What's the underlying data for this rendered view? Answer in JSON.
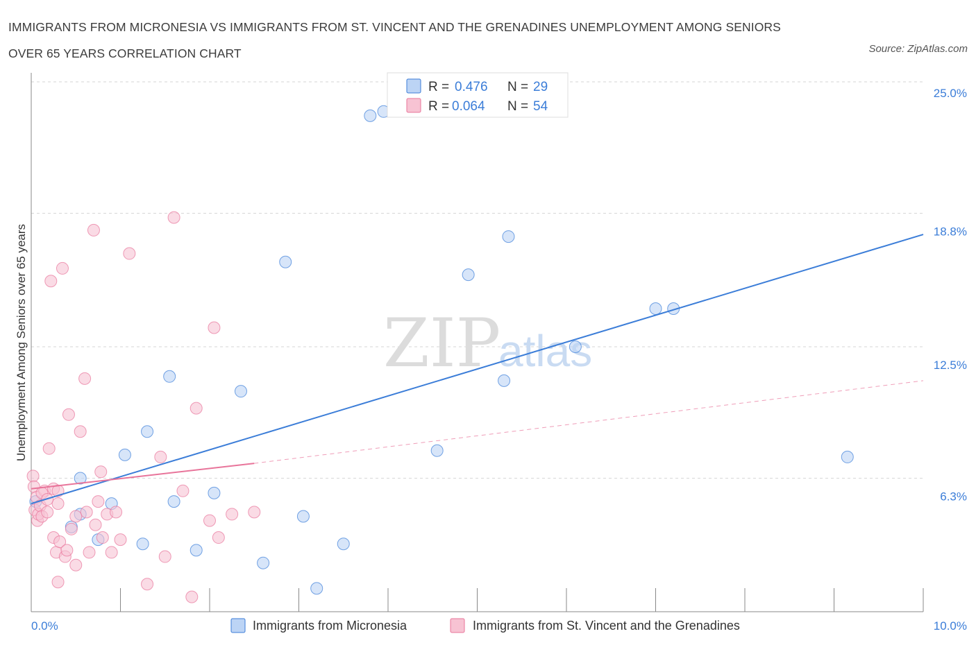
{
  "title_line1": "IMMIGRANTS FROM MICRONESIA VS IMMIGRANTS FROM ST. VINCENT AND THE GRENADINES UNEMPLOYMENT AMONG SENIORS",
  "title_line2": "OVER 65 YEARS CORRELATION CHART",
  "source": "Source: ZipAtlas.com",
  "watermark": {
    "zip": "ZIP",
    "atlas": "atlas"
  },
  "colors": {
    "blue": "#3b7dd8",
    "blue_fill": "#bcd4f5",
    "pink": "#e8749a",
    "pink_fill": "#f7c3d3",
    "grid": "#d6d6d6"
  },
  "legend": {
    "rows": [
      {
        "r_label": "R =",
        "r_value": "0.476",
        "n_label": "N =",
        "n_value": "29"
      },
      {
        "r_label": "R =",
        "r_value": "0.064",
        "n_label": "N =",
        "n_value": "54"
      }
    ]
  },
  "chart_data": {
    "type": "scatter",
    "title": "IMMIGRANTS FROM MICRONESIA VS IMMIGRANTS FROM ST. VINCENT AND THE GRENADINES UNEMPLOYMENT AMONG SENIORS OVER 65 YEARS CORRELATION CHART",
    "xlabel": "",
    "ylabel": "Unemployment Among Seniors over 65 years",
    "xlim": [
      0,
      10
    ],
    "ylim": [
      0,
      25
    ],
    "x_tick_labels": [
      "0.0%",
      "10.0%"
    ],
    "y_ticks": [
      6.3,
      12.5,
      18.8,
      25.0
    ],
    "y_tick_labels": [
      "6.3%",
      "12.5%",
      "18.8%",
      "25.0%"
    ],
    "grid": true,
    "legend_position": "bottom-center",
    "series": [
      {
        "name": "Immigrants from Micronesia",
        "color": "#3b7dd8",
        "trend": {
          "x": [
            0.0,
            10.0
          ],
          "y": [
            5.1,
            17.8
          ],
          "style": "solid"
        },
        "points": [
          [
            0.05,
            5.2
          ],
          [
            0.45,
            4.0
          ],
          [
            0.55,
            4.6
          ],
          [
            0.55,
            6.3
          ],
          [
            0.75,
            3.4
          ],
          [
            0.9,
            5.1
          ],
          [
            1.05,
            7.4
          ],
          [
            1.25,
            3.2
          ],
          [
            1.3,
            8.5
          ],
          [
            1.55,
            11.1
          ],
          [
            1.6,
            5.2
          ],
          [
            1.85,
            2.9
          ],
          [
            2.05,
            5.6
          ],
          [
            2.35,
            10.4
          ],
          [
            2.6,
            2.3
          ],
          [
            2.85,
            16.5
          ],
          [
            3.05,
            4.5
          ],
          [
            3.2,
            1.1
          ],
          [
            3.5,
            3.2
          ],
          [
            3.8,
            23.4
          ],
          [
            3.95,
            23.6
          ],
          [
            4.55,
            7.6
          ],
          [
            4.9,
            15.9
          ],
          [
            5.3,
            10.9
          ],
          [
            5.35,
            17.7
          ],
          [
            6.1,
            12.5
          ],
          [
            7.0,
            14.3
          ],
          [
            7.2,
            14.3
          ],
          [
            9.15,
            7.3
          ]
        ]
      },
      {
        "name": "Immigrants from St. Vincent and the Grenadines",
        "color": "#e8749a",
        "trend": {
          "x": [
            0.0,
            2.5
          ],
          "y": [
            5.8,
            7.0
          ],
          "style": "solid",
          "extended": {
            "x": [
              2.5,
              10.0
            ],
            "y": [
              7.0,
              10.9
            ],
            "style": "dashed"
          }
        },
        "points": [
          [
            0.02,
            6.4
          ],
          [
            0.03,
            5.9
          ],
          [
            0.04,
            4.8
          ],
          [
            0.06,
            5.4
          ],
          [
            0.07,
            4.3
          ],
          [
            0.08,
            4.6
          ],
          [
            0.1,
            5.0
          ],
          [
            0.12,
            4.5
          ],
          [
            0.15,
            5.7
          ],
          [
            0.18,
            4.7
          ],
          [
            0.2,
            7.7
          ],
          [
            0.22,
            15.6
          ],
          [
            0.25,
            3.5
          ],
          [
            0.25,
            5.8
          ],
          [
            0.28,
            2.8
          ],
          [
            0.3,
            5.1
          ],
          [
            0.3,
            1.4
          ],
          [
            0.32,
            3.3
          ],
          [
            0.35,
            16.2
          ],
          [
            0.38,
            2.6
          ],
          [
            0.4,
            2.9
          ],
          [
            0.42,
            9.3
          ],
          [
            0.45,
            3.9
          ],
          [
            0.5,
            2.2
          ],
          [
            0.55,
            8.5
          ],
          [
            0.6,
            11.0
          ],
          [
            0.62,
            4.7
          ],
          [
            0.65,
            2.8
          ],
          [
            0.7,
            18.0
          ],
          [
            0.72,
            4.1
          ],
          [
            0.75,
            5.2
          ],
          [
            0.78,
            6.6
          ],
          [
            0.8,
            3.5
          ],
          [
            0.85,
            4.6
          ],
          [
            0.9,
            2.8
          ],
          [
            1.0,
            3.4
          ],
          [
            1.1,
            16.9
          ],
          [
            1.3,
            1.3
          ],
          [
            1.45,
            7.3
          ],
          [
            1.5,
            2.6
          ],
          [
            1.6,
            18.6
          ],
          [
            1.7,
            5.7
          ],
          [
            1.8,
            0.7
          ],
          [
            1.85,
            9.6
          ],
          [
            2.0,
            4.3
          ],
          [
            2.05,
            13.4
          ],
          [
            2.1,
            3.5
          ],
          [
            2.25,
            4.6
          ],
          [
            2.5,
            4.7
          ],
          [
            0.12,
            5.6
          ],
          [
            0.18,
            5.3
          ],
          [
            0.3,
            5.7
          ],
          [
            0.5,
            4.5
          ],
          [
            0.95,
            4.7
          ]
        ]
      }
    ]
  }
}
